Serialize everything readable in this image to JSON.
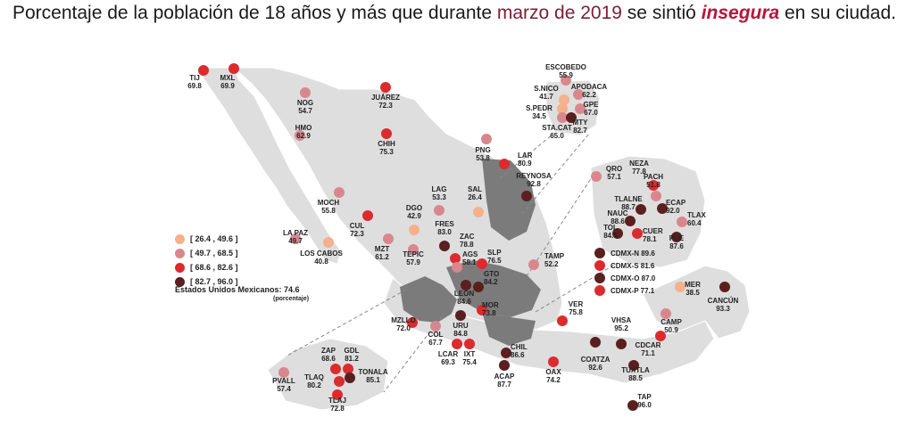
{
  "title": {
    "part1": "Porcentaje de la población de 18 años y más que durante ",
    "period": "marzo de 2019",
    "part2": " se sintió ",
    "emphasis": "insegura",
    "part3": " en su ciudad."
  },
  "colors": {
    "r1": "#f5b08c",
    "r2": "#d9878f",
    "r3": "#dc2b2f",
    "r4": "#5a1f1f",
    "land": "#dedede",
    "highlight": "#7b7b7b",
    "border": "#ffffff"
  },
  "legend": [
    {
      "label": "[ 26.4 , 49.6 ]",
      "range": "r1"
    },
    {
      "label": "[ 49.7 , 68.5 ]",
      "range": "r2"
    },
    {
      "label": "[ 68.6 , 82.6 ]",
      "range": "r3"
    },
    {
      "label": "[ 82.7 , 96.0 ]",
      "range": "r4"
    }
  ],
  "national": {
    "label": "Estados Unidos Mexicanos:",
    "value": "74.6",
    "unit": "(porcentaje)"
  },
  "cities": [
    {
      "name": "TIJ",
      "value": "69.8",
      "range": "r3"
    },
    {
      "name": "MXL",
      "value": "69.9",
      "range": "r3"
    },
    {
      "name": "NOG",
      "value": "54.7",
      "range": "r2"
    },
    {
      "name": "JUÁREZ",
      "value": "72.3",
      "range": "r3"
    },
    {
      "name": "HMO",
      "value": "62.9",
      "range": "r2"
    },
    {
      "name": "CHIH",
      "value": "75.3",
      "range": "r3"
    },
    {
      "name": "MOCH",
      "value": "55.8",
      "range": "r2"
    },
    {
      "name": "LA PAZ",
      "value": "49.7",
      "range": "r2"
    },
    {
      "name": "LOS CABOS",
      "value": "40.8",
      "range": "r1"
    },
    {
      "name": "CUL",
      "value": "72.3",
      "range": "r3"
    },
    {
      "name": "MZT",
      "value": "61.2",
      "range": "r2"
    },
    {
      "name": "DGO",
      "value": "42.9",
      "range": "r1"
    },
    {
      "name": "TEPIC",
      "value": "57.9",
      "range": "r2"
    },
    {
      "name": "LAG",
      "value": "53.3",
      "range": "r2"
    },
    {
      "name": "SAL",
      "value": "26.4",
      "range": "r1"
    },
    {
      "name": "PNG",
      "value": "53.8",
      "range": "r2"
    },
    {
      "name": "LAR",
      "value": "80.9",
      "range": "r3"
    },
    {
      "name": "REYNOSA",
      "value": "92.8",
      "range": "r4"
    },
    {
      "name": "FRES",
      "value": "83.0",
      "range": "r4"
    },
    {
      "name": "ZAC",
      "value": "78.8",
      "range": "r3"
    },
    {
      "name": "AGS",
      "value": "58.1",
      "range": "r2"
    },
    {
      "name": "SLP",
      "value": "76.5",
      "range": "r3"
    },
    {
      "name": "TAMP",
      "value": "52.2",
      "range": "r2"
    },
    {
      "name": "GTO",
      "value": "84.2",
      "range": "r4"
    },
    {
      "name": "LEON",
      "value": "84.6",
      "range": "r4"
    },
    {
      "name": "MOR",
      "value": "73.8",
      "range": "r3"
    },
    {
      "name": "MZLLO",
      "value": "72.0",
      "range": "r3"
    },
    {
      "name": "COL",
      "value": "67.7",
      "range": "r2"
    },
    {
      "name": "URU",
      "value": "84.8",
      "range": "r4"
    },
    {
      "name": "LCAR",
      "value": "69.3",
      "range": "r3"
    },
    {
      "name": "IXT",
      "value": "75.4",
      "range": "r3"
    },
    {
      "name": "CHIL",
      "value": "86.6",
      "range": "r4"
    },
    {
      "name": "ACAP",
      "value": "87.7",
      "range": "r4"
    },
    {
      "name": "OAX",
      "value": "74.2",
      "range": "r3"
    },
    {
      "name": "VER",
      "value": "75.8",
      "range": "r3"
    },
    {
      "name": "VHSA",
      "value": "95.2",
      "range": "r4"
    },
    {
      "name": "COATZA",
      "value": "92.6",
      "range": "r4"
    },
    {
      "name": "CDCAR",
      "value": "71.1",
      "range": "r3"
    },
    {
      "name": "TUXTLA",
      "value": "88.5",
      "range": "r4"
    },
    {
      "name": "TAP",
      "value": "96.0",
      "range": "r4"
    },
    {
      "name": "CAMP",
      "value": "50.9",
      "range": "r2"
    },
    {
      "name": "MER",
      "value": "38.5",
      "range": "r1"
    },
    {
      "name": "CANCÚN",
      "value": "93.3",
      "range": "r4"
    },
    {
      "name": "ZAP",
      "value": "68.6",
      "range": "r3"
    },
    {
      "name": "GDL",
      "value": "81.2",
      "range": "r3"
    },
    {
      "name": "TONALA",
      "value": "85.1",
      "range": "r4"
    },
    {
      "name": "TLAQ",
      "value": "80.2",
      "range": "r3"
    },
    {
      "name": "TLAJ",
      "value": "72.8",
      "range": "r3"
    },
    {
      "name": "PVALL",
      "value": "57.4",
      "range": "r2"
    },
    {
      "name": "ESCOBEDO",
      "value": "55.9",
      "range": "r2"
    },
    {
      "name": "S.NICO",
      "value": "41.7",
      "range": "r1"
    },
    {
      "name": "APODACA",
      "value": "62.2",
      "range": "r2"
    },
    {
      "name": "S.PEDR",
      "value": "34.5",
      "range": "r1"
    },
    {
      "name": "GPE",
      "value": "67.0",
      "range": "r2"
    },
    {
      "name": "STA.CAT",
      "value": "65.0",
      "range": "r2"
    },
    {
      "name": "MTY",
      "value": "82.7",
      "range": "r4"
    },
    {
      "name": "QRO",
      "value": "57.1",
      "range": "r2"
    },
    {
      "name": "NEZA",
      "value": "77.8",
      "range": "r3"
    },
    {
      "name": "PACH",
      "value": "51.8",
      "range": "r2"
    },
    {
      "name": "TLALNE",
      "value": "88.7",
      "range": "r4"
    },
    {
      "name": "ECAP",
      "value": "92.0",
      "range": "r4"
    },
    {
      "name": "NAUC",
      "value": "88.6",
      "range": "r4"
    },
    {
      "name": "TLAX",
      "value": "60.4",
      "range": "r2"
    },
    {
      "name": "TOL",
      "value": "84.5",
      "range": "r4"
    },
    {
      "name": "CUER",
      "value": "78.1",
      "range": "r3"
    },
    {
      "name": "PUE",
      "value": "87.6",
      "range": "r4"
    },
    {
      "name": "CDMX-N",
      "value": "89.6",
      "range": "r4"
    },
    {
      "name": "CDMX-S",
      "value": "81.6",
      "range": "r3"
    },
    {
      "name": "CDMX-O",
      "value": "87.0",
      "range": "r4"
    },
    {
      "name": "CDMX-P",
      "value": "77.1",
      "range": "r3"
    }
  ]
}
